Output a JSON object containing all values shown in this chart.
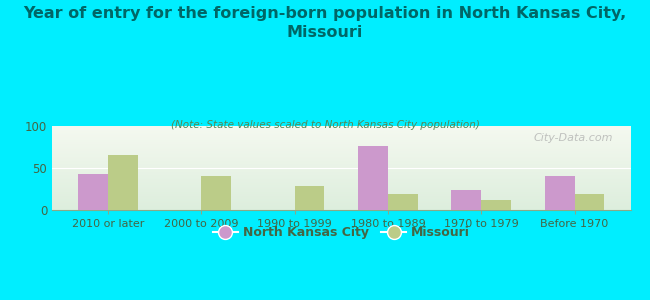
{
  "title": "Year of entry for the foreign-born population in North Kansas City,\nMissouri",
  "subtitle": "(Note: State values scaled to North Kansas City population)",
  "categories": [
    "2010 or later",
    "2000 to 2009",
    "1990 to 1999",
    "1980 to 1989",
    "1970 to 1979",
    "Before 1970"
  ],
  "nkc_values": [
    43,
    0,
    0,
    76,
    24,
    41
  ],
  "mo_values": [
    65,
    41,
    28,
    19,
    12,
    19
  ],
  "nkc_color": "#cc99cc",
  "mo_color": "#bbcc88",
  "background_outer": "#00eeff",
  "background_plot_top": "#f5f9f0",
  "background_plot_bottom": "#ddeedd",
  "ylim": [
    0,
    100
  ],
  "yticks": [
    0,
    50,
    100
  ],
  "bar_width": 0.32,
  "legend_nkc": "North Kansas City",
  "legend_mo": "Missouri",
  "watermark": "City-Data.com"
}
